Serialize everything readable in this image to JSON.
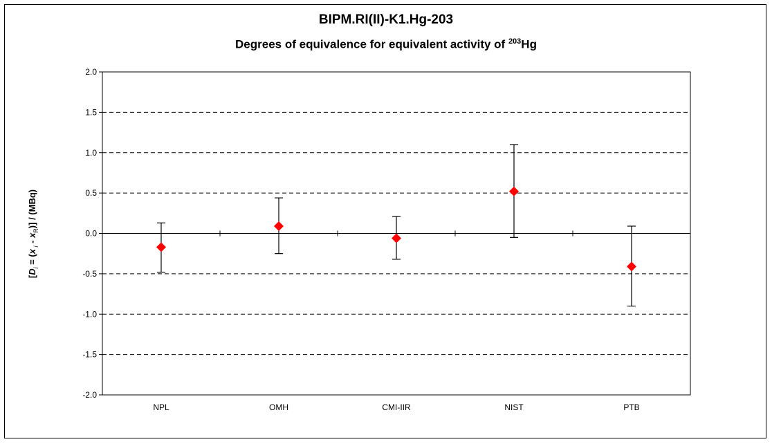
{
  "chart_data": {
    "type": "scatter",
    "title": "BIPM.RI(II)-K1.Hg-203",
    "subtitle": {
      "prefix": "Degrees of equivalence for equivalent activity of ",
      "superscript": "203",
      "suffix": "Hg"
    },
    "ylabel": {
      "open": "[",
      "D": "D",
      "i_sub": "i",
      "mid": " = (",
      "x1": "x",
      "i_sub2": " i",
      "minus": " - ",
      "x2": "x",
      "R_sub": "R",
      "close": ")] / (MBq)"
    },
    "categories": [
      "NPL",
      "OMH",
      "CMI-IIR",
      "NIST",
      "PTB"
    ],
    "values": [
      -0.17,
      0.09,
      -0.06,
      0.52,
      -0.41
    ],
    "error_upper": [
      0.13,
      0.44,
      0.21,
      1.1,
      0.09
    ],
    "error_lower": [
      -0.48,
      -0.25,
      -0.32,
      -0.05,
      -0.9
    ],
    "ylim": [
      -2.0,
      2.0
    ],
    "yticks": [
      "2.0",
      "1.5",
      "1.0",
      "0.5",
      "0.0",
      "-0.5",
      "-1.0",
      "-1.5",
      "-2.0"
    ],
    "ytick_values": [
      2.0,
      1.5,
      1.0,
      0.5,
      0.0,
      -0.5,
      -1.0,
      -1.5,
      -2.0
    ],
    "grid": "dashed horizontal",
    "marker_color": "#ff0000",
    "errorbar_color": "#000000"
  }
}
